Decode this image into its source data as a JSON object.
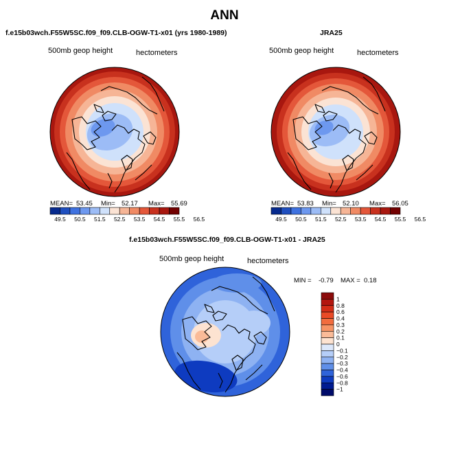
{
  "title": "ANN",
  "panels": {
    "model": {
      "title": "f.e15b03wch.F55W5SC.f09_f09.CLB-OGW-T1-x01 (yrs 1980-1989)",
      "field_label": "500mb geop height",
      "units_label": "hectometers",
      "mean_label": "MEAN=",
      "mean": "53.45",
      "min_label": "Min=",
      "min": "52.17",
      "max_label": "Max=",
      "max": "55.69"
    },
    "obs": {
      "title": "JRA25",
      "field_label": "500mb geop height",
      "units_label": "hectometers",
      "mean_label": "MEAN=",
      "mean": "53.83",
      "min_label": "Min=",
      "min": "52.10",
      "max_label": "Max=",
      "max": "56.05"
    },
    "diff": {
      "title": "f.e15b03wch.F55W5SC.f09_f09.CLB-OGW-T1-x01 - JRA25",
      "field_label": "500mb geop height",
      "units_label": "hectometers",
      "min_label": "MIN =",
      "min": "-0.79",
      "max_label": "MAX =",
      "max": "0.18"
    }
  },
  "chart_data": [
    {
      "type": "heatmap",
      "name": "model",
      "projection": "north-polar-stereographic",
      "title": "f.e15b03wch.F55W5SC.f09_f09.CLB-OGW-T1-x01 (yrs 1980-1989)",
      "field": "500mb geop height",
      "units": "hectometers",
      "mean": 53.45,
      "min": 52.17,
      "max": 55.69,
      "contour_levels": [
        49.5,
        50.5,
        51.5,
        52.5,
        53.5,
        54.5,
        55.5,
        56.5
      ],
      "colorbar_colors": [
        "#062a8e",
        "#1f4fbf",
        "#3f72e0",
        "#6d98ef",
        "#9cbcf6",
        "#cfe1fb",
        "#fbe3d4",
        "#f6b596",
        "#f08a64",
        "#e4573a",
        "#c8311e",
        "#a8170f",
        "#720000"
      ]
    },
    {
      "type": "heatmap",
      "name": "obs",
      "projection": "north-polar-stereographic",
      "title": "JRA25",
      "field": "500mb geop height",
      "units": "hectometers",
      "mean": 53.83,
      "min": 52.1,
      "max": 56.05,
      "contour_levels": [
        49.5,
        50.5,
        51.5,
        52.5,
        53.5,
        54.5,
        55.5,
        56.5
      ],
      "colorbar_colors": [
        "#062a8e",
        "#1f4fbf",
        "#3f72e0",
        "#6d98ef",
        "#9cbcf6",
        "#cfe1fb",
        "#fbe3d4",
        "#f6b596",
        "#f08a64",
        "#e4573a",
        "#c8311e",
        "#a8170f",
        "#720000"
      ]
    },
    {
      "type": "heatmap",
      "name": "difference",
      "projection": "north-polar-stereographic",
      "title": "f.e15b03wch.F55W5SC.f09_f09.CLB-OGW-T1-x01 - JRA25",
      "field": "500mb geop height",
      "units": "hectometers",
      "min": -0.79,
      "max": 0.18,
      "contour_levels": [
        "1",
        "0.8",
        "0.6",
        "0.4",
        "0.3",
        "0.2",
        "0.1",
        "0",
        "−0.1",
        "−0.2",
        "−0.3",
        "−0.4",
        "−0.6",
        "−0.8",
        "−1"
      ],
      "colorbar_colors": [
        "#8b0a0a",
        "#b3160f",
        "#d42d17",
        "#ea4a26",
        "#f26c3e",
        "#f79466",
        "#fabb98",
        "#fde3d1",
        "#dce8fb",
        "#b5cef8",
        "#8eb2f2",
        "#5f8fe9",
        "#2f63da",
        "#0e3bc0",
        "#001b91",
        "#000b6a"
      ]
    }
  ],
  "colors": {
    "land_outline": "#000000",
    "frame": "#000000"
  }
}
